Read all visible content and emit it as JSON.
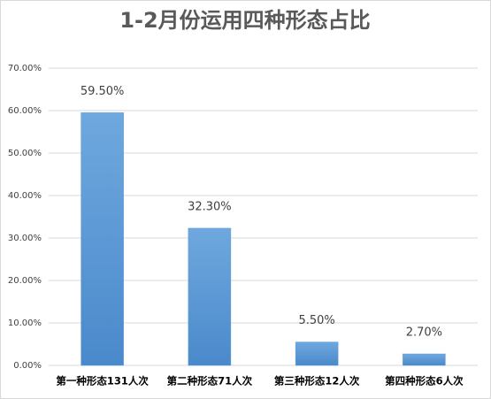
{
  "chart_data": {
    "type": "bar",
    "title": "1-2月份运用四种形态占比",
    "categories": [
      "第一种形态131人次",
      "第二种形态71人次",
      "第三种形态12人次",
      "第四种形态6人次"
    ],
    "values": [
      59.5,
      32.3,
      5.5,
      2.7
    ],
    "value_labels": [
      "59.50%",
      "32.30%",
      "5.50%",
      "2.70%"
    ],
    "color": "#5b9bd5",
    "ylim": [
      0,
      70
    ],
    "yticks": [
      {
        "value": 0,
        "label": "0.00%"
      },
      {
        "value": 10,
        "label": "10.00%"
      },
      {
        "value": 20,
        "label": "20.00%"
      },
      {
        "value": 30,
        "label": "30.00%"
      },
      {
        "value": 40,
        "label": "40.00%"
      },
      {
        "value": 50,
        "label": "50.00%"
      },
      {
        "value": 60,
        "label": "60.00%"
      },
      {
        "value": 70,
        "label": "70.00%"
      }
    ],
    "grid": true
  }
}
